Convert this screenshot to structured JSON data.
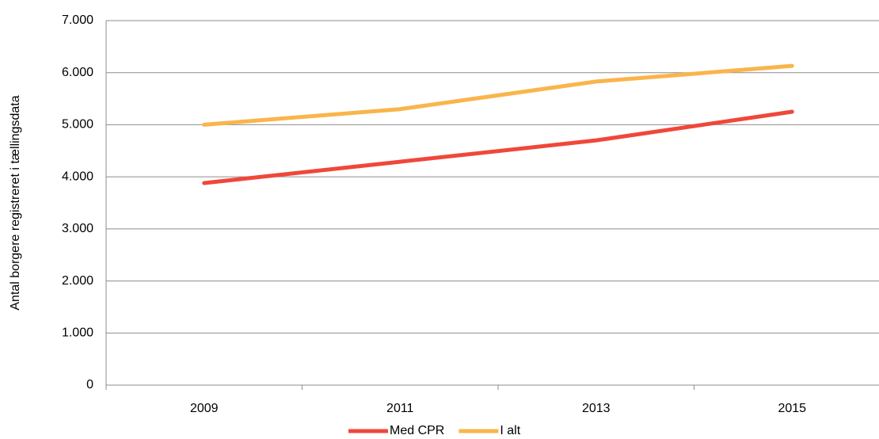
{
  "chart_data": {
    "type": "line",
    "y_label": "Antal borgere registreret i tællingsdata",
    "categories": [
      "2009",
      "2011",
      "2013",
      "2015"
    ],
    "series": [
      {
        "name": "Med CPR",
        "color": "#f0473a",
        "values": [
          3880,
          4290,
          4700,
          5250
        ]
      },
      {
        "name": "I alt",
        "color": "#f9b54b",
        "values": [
          5000,
          5300,
          5830,
          6130
        ]
      }
    ],
    "ylim": [
      0,
      7000
    ],
    "yticks": [
      0,
      {
        "value": 1000,
        "label": "1.000"
      },
      {
        "value": 2000,
        "label": "2.000"
      },
      {
        "value": 3000,
        "label": "3.000"
      },
      {
        "value": 4000,
        "label": "4.000"
      },
      {
        "value": 5000,
        "label": "5.000"
      },
      {
        "value": 6000,
        "label": "6.000"
      },
      {
        "value": 7000,
        "label": "7.000"
      }
    ],
    "grid": true,
    "legend": "bottom"
  }
}
